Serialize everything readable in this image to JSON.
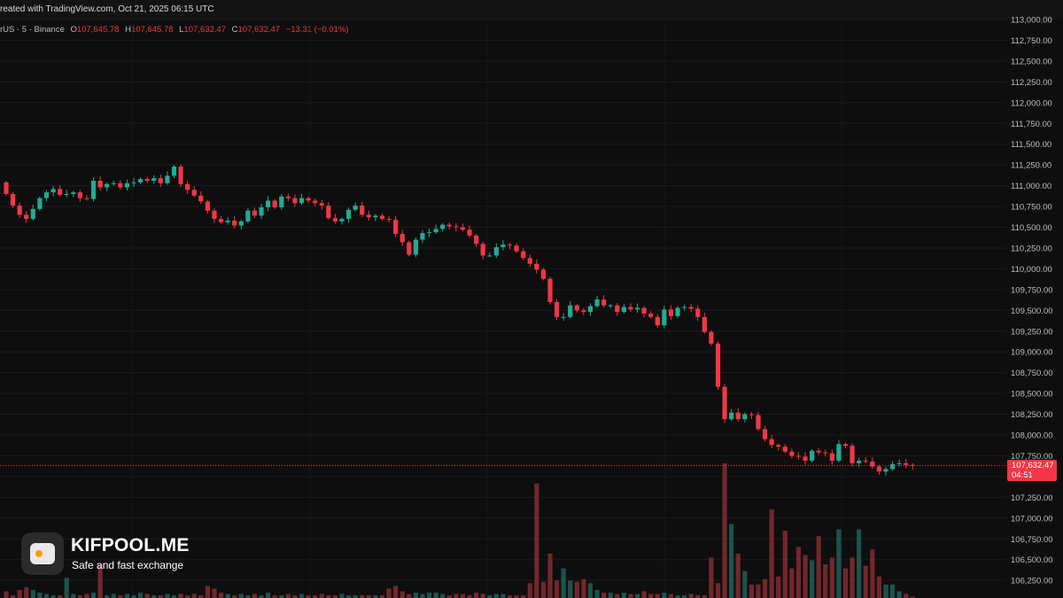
{
  "header": {
    "created_text": "reated with TradingView.com, Oct 21, 2025 06:15 UTC"
  },
  "legend": {
    "symbol": "rUS · 5 · Binance",
    "open_label": "O",
    "open_value": "107,645.78",
    "high_label": "H",
    "high_value": "107,645.78",
    "low_label": "L",
    "low_value": "107,632.47",
    "close_label": "C",
    "close_value": "107,632.47",
    "change": "−13.31 (−0.01%)"
  },
  "price_tag": {
    "price": "107,632.47",
    "countdown": "04:51"
  },
  "brand": {
    "name": "KIFPOOL.ME",
    "tagline": "Safe and fast exchange"
  },
  "colors": {
    "up": "#22ab94",
    "down": "#f23645",
    "background": "#0e0e0e"
  },
  "chart_data": {
    "type": "candlestick",
    "price_axis_ticks": [
      "113,000.00",
      "112,750.00",
      "112,500.00",
      "112,250.00",
      "112,000.00",
      "111,750.00",
      "111,500.00",
      "111,250.00",
      "111,000.00",
      "110,750.00",
      "110,500.00",
      "110,250.00",
      "110,000.00",
      "109,750.00",
      "109,500.00",
      "109,250.00",
      "109,000.00",
      "108,750.00",
      "108,500.00",
      "108,250.00",
      "108,000.00",
      "107,750.00",
      "107,500.00",
      "107,250.00",
      "107,000.00",
      "106,750.00",
      "106,500.00",
      "106,250.00"
    ],
    "ylim": [
      106200,
      113000
    ],
    "last_price": 107632.47,
    "close": [
      110900,
      110760,
      110650,
      110600,
      110720,
      110850,
      110920,
      110960,
      110890,
      110900,
      110920,
      110850,
      110840,
      111060,
      110980,
      111020,
      111030,
      110980,
      111030,
      111040,
      111080,
      111060,
      111090,
      111030,
      111120,
      111230,
      111020,
      110950,
      110880,
      110810,
      110700,
      110600,
      110560,
      110580,
      110520,
      110570,
      110700,
      110640,
      110740,
      110820,
      110740,
      110870,
      110850,
      110790,
      110850,
      110820,
      110790,
      110760,
      110610,
      110570,
      110600,
      110710,
      110760,
      110650,
      110620,
      110640,
      110600,
      110590,
      110420,
      110320,
      110170,
      110350,
      110430,
      110440,
      110480,
      110530,
      110510,
      110500,
      110470,
      110400,
      110300,
      110160,
      110160,
      110260,
      110290,
      110280,
      110210,
      110130,
      110060,
      109990,
      109880,
      109600,
      109420,
      109420,
      109560,
      109500,
      109480,
      109550,
      109630,
      109560,
      109560,
      109480,
      109540,
      109510,
      109530,
      109460,
      109420,
      109320,
      109510,
      109430,
      109530,
      109540,
      109520,
      109420,
      109240,
      109100,
      108580,
      108190,
      108270,
      108190,
      108250,
      108240,
      108070,
      107950,
      107880,
      107860,
      107800,
      107750,
      107740,
      107690,
      107810,
      107790,
      107780,
      107690,
      107890,
      107870,
      107660,
      107690,
      107680,
      107620,
      107560,
      107590,
      107650,
      107660,
      107640,
      107630
    ],
    "volume": [
      0.05,
      0.02,
      0.06,
      0.08,
      0.06,
      0.04,
      0.03,
      0.02,
      0.02,
      0.15,
      0.03,
      0.02,
      0.03,
      0.04,
      0.25,
      0.02,
      0.03,
      0.02,
      0.03,
      0.02,
      0.04,
      0.03,
      0.02,
      0.02,
      0.03,
      0.02,
      0.03,
      0.02,
      0.03,
      0.02,
      0.09,
      0.07,
      0.04,
      0.03,
      0.02,
      0.03,
      0.02,
      0.03,
      0.02,
      0.04,
      0.02,
      0.02,
      0.03,
      0.02,
      0.03,
      0.02,
      0.02,
      0.03,
      0.02,
      0.02,
      0.03,
      0.02,
      0.02,
      0.02,
      0.02,
      0.02,
      0.02,
      0.07,
      0.09,
      0.05,
      0.03,
      0.04,
      0.03,
      0.04,
      0.04,
      0.03,
      0.02,
      0.03,
      0.03,
      0.02,
      0.04,
      0.03,
      0.02,
      0.03,
      0.03,
      0.02,
      0.02,
      0.02,
      0.11,
      0.85,
      0.12,
      0.33,
      0.13,
      0.22,
      0.13,
      0.12,
      0.14,
      0.11,
      0.06,
      0.04,
      0.04,
      0.03,
      0.04,
      0.03,
      0.03,
      0.05,
      0.03,
      0.03,
      0.04,
      0.03,
      0.02,
      0.02,
      0.03,
      0.02,
      0.02,
      0.3,
      0.11,
      1.0,
      0.55,
      0.33,
      0.2,
      0.1,
      0.1,
      0.14,
      0.66,
      0.16,
      0.5,
      0.22,
      0.38,
      0.32,
      0.28,
      0.46,
      0.25,
      0.3,
      0.51,
      0.22,
      0.3,
      0.51,
      0.24,
      0.36,
      0.16,
      0.1,
      0.1,
      0.05,
      0.03,
      0.01
    ]
  }
}
